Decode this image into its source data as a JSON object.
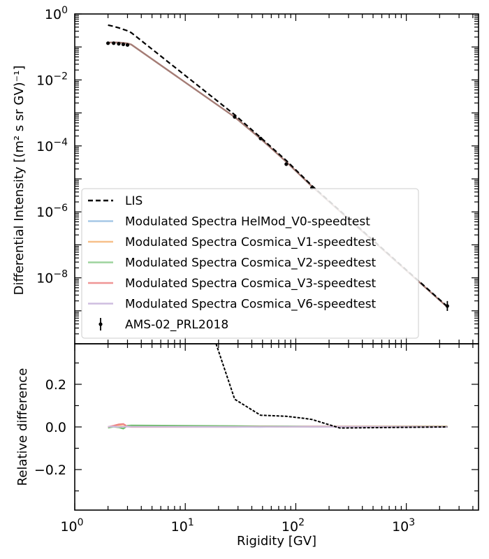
{
  "chart_data": [
    {
      "type": "line",
      "xscale": "log",
      "yscale": "log",
      "xlim": [
        1,
        4500
      ],
      "ylim": [
        1e-10,
        1.0
      ],
      "ylabel_main": "Differential Intensity",
      "ylabel_unit": "[(m² s sr GV)⁻¹]",
      "yticks": [
        {
          "value": 1.0,
          "base": "10",
          "exp": "0"
        },
        {
          "value": 0.01,
          "base": "10",
          "exp": "−2"
        },
        {
          "value": 0.0001,
          "base": "10",
          "exp": "−4"
        },
        {
          "value": 1e-06,
          "base": "10",
          "exp": "−6"
        },
        {
          "value": 1e-08,
          "base": "10",
          "exp": "−8"
        }
      ],
      "x": [
        2.0,
        2.25,
        2.5,
        2.75,
        3.0,
        3.25,
        28,
        48,
        82,
        140,
        2350
      ],
      "series": [
        {
          "name": "LIS",
          "style": "dashed",
          "color": "#000000",
          "values": [
            0.46,
            0.42,
            0.38,
            0.34,
            0.31,
            0.27,
            0.00088,
            0.00018,
            3.6e-05,
            6.2e-06,
            1.35e-09
          ]
        },
        {
          "name": "Modulated Spectra HelMod_V0-speedtest",
          "style": "solid",
          "color": "#a6c8e6",
          "values": [
            0.135,
            0.138,
            0.136,
            0.133,
            0.128,
            0.118,
            0.00075,
            0.000165,
            3.3e-05,
            5.9e-06,
            1.3e-09
          ]
        },
        {
          "name": "Modulated Spectra Cosmica_V1-speedtest",
          "style": "solid",
          "color": "#f7c08a",
          "values": [
            0.135,
            0.138,
            0.136,
            0.133,
            0.128,
            0.118,
            0.00075,
            0.000165,
            3.3e-05,
            5.9e-06,
            1.3e-09
          ]
        },
        {
          "name": "Modulated Spectra Cosmica_V2-speedtest",
          "style": "solid",
          "color": "#9dd49d",
          "values": [
            0.135,
            0.138,
            0.136,
            0.133,
            0.128,
            0.118,
            0.00075,
            0.000165,
            3.3e-05,
            5.9e-06,
            1.3e-09
          ]
        },
        {
          "name": "Modulated Spectra Cosmica_V3-speedtest",
          "style": "solid",
          "color": "#ef9595",
          "values": [
            0.135,
            0.138,
            0.136,
            0.133,
            0.128,
            0.118,
            0.00075,
            0.000165,
            3.3e-05,
            5.9e-06,
            1.3e-09
          ]
        },
        {
          "name": "Modulated Spectra Cosmica_V6-speedtest",
          "style": "solid",
          "color": "#cfbde0",
          "values": [
            0.135,
            0.138,
            0.136,
            0.133,
            0.128,
            0.118,
            0.00075,
            0.000165,
            3.3e-05,
            5.9e-06,
            1.3e-09
          ]
        }
      ],
      "points": {
        "name": "AMS-02_PRL2018",
        "x": [
          2.0,
          2.25,
          2.5,
          2.75,
          3.0,
          28,
          48,
          82,
          140,
          2350
        ],
        "y": [
          0.13,
          0.13,
          0.125,
          0.12,
          0.115,
          0.00076,
          0.000168,
          2.8e-05,
          5.3e-06,
          1.4e-09
        ],
        "yerr_decades": [
          0,
          0,
          0,
          0,
          0,
          0,
          0,
          0,
          0,
          0.3
        ]
      },
      "legend": "lower-left"
    },
    {
      "type": "line",
      "xscale": "log",
      "xlim": [
        1,
        4500
      ],
      "ylim": [
        -0.39,
        0.39
      ],
      "xlabel": "Rigidity [GV]",
      "ylabel": "Relative difference",
      "yticks": [
        {
          "value": 0.2,
          "label": "0.2"
        },
        {
          "value": 0.0,
          "label": "0.0"
        },
        {
          "value": -0.2,
          "label": "−0.2"
        }
      ],
      "xticks": [
        {
          "value": 1,
          "base": "10",
          "exp": "0"
        },
        {
          "value": 10,
          "base": "10",
          "exp": "1"
        },
        {
          "value": 100,
          "base": "10",
          "exp": "2"
        },
        {
          "value": 1000,
          "base": "10",
          "exp": "3"
        }
      ],
      "x": [
        2.0,
        2.25,
        2.5,
        2.75,
        3.0,
        3.25,
        28,
        48,
        82,
        140,
        2350
      ],
      "dashed_x": [
        19,
        28,
        48,
        82,
        120,
        140,
        250,
        2350
      ],
      "dashed_y": [
        0.39,
        0.13,
        0.055,
        0.05,
        0.04,
        0.035,
        -0.005,
        0.0
      ],
      "series": [
        {
          "name": "HelMod_V0-speedtest",
          "color": "#a6c8e6",
          "values": [
            0.0,
            0.002,
            0.0,
            0.003,
            0.001,
            0.003,
            0.001,
            0.0,
            0.001,
            0.0,
            0.002
          ]
        },
        {
          "name": "Cosmica_V1-speedtest",
          "color": "#f7c08a",
          "values": [
            0.001,
            0.003,
            0.006,
            0.004,
            0.002,
            0.004,
            0.002,
            0.001,
            0.002,
            0.001,
            0.003
          ]
        },
        {
          "name": "Cosmica_V2-speedtest",
          "color": "#6cbf6c",
          "values": [
            -0.004,
            0.001,
            -0.002,
            -0.008,
            0.006,
            0.007,
            0.004,
            0.003,
            0.003,
            0.002,
            0.002
          ]
        },
        {
          "name": "Cosmica_V3-speedtest",
          "color": "#ef8080",
          "values": [
            0.0,
            0.006,
            0.012,
            0.014,
            0.002,
            0.0,
            0.0,
            0.001,
            0.001,
            0.002,
            0.001
          ]
        },
        {
          "name": "Cosmica_V6-speedtest",
          "color": "#cfbde0",
          "values": [
            0.001,
            0.002,
            0.0,
            0.001,
            0.002,
            0.001,
            0.0,
            0.0,
            0.001,
            0.001,
            0.0
          ]
        }
      ]
    }
  ]
}
